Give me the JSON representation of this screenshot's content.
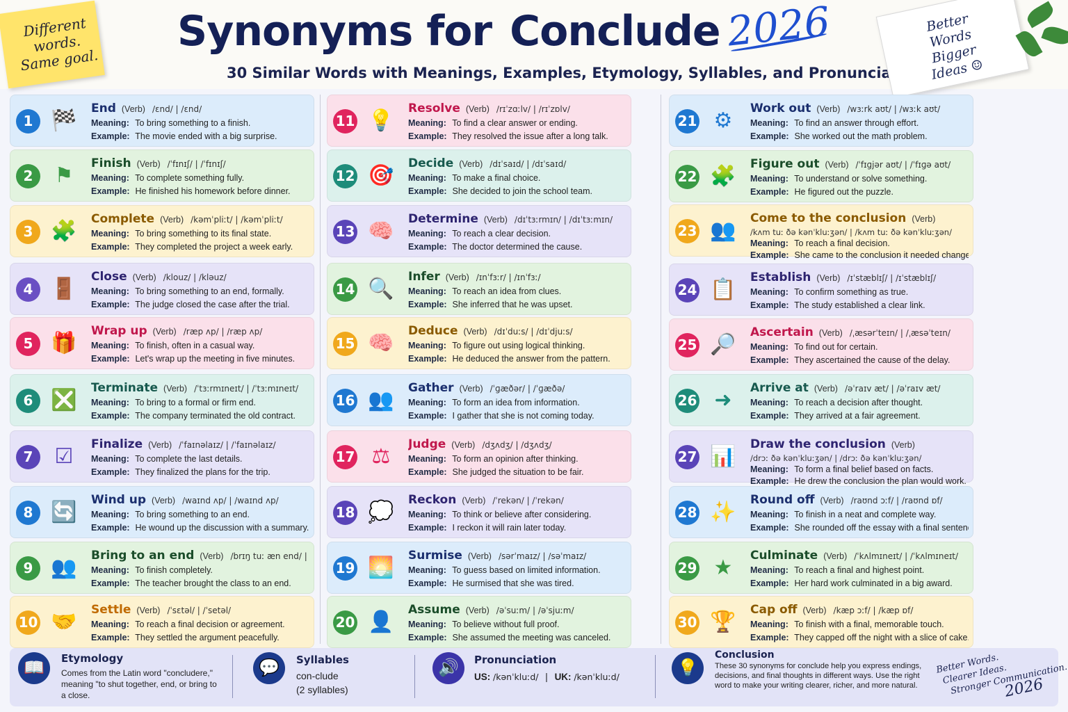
{
  "header": {
    "sticky_lines": [
      "Different",
      "words.",
      "Same goal."
    ],
    "title_prefix": "Synonyms for",
    "title_highlight": "Conclude",
    "year": "2026",
    "subtitle": "30 Similar Words with Meanings, Examples, Etymology, Syllables, and Pronunciation",
    "notebook_lines": [
      "Better",
      "Words",
      "Bigger",
      "Ideas ☺"
    ]
  },
  "labels": {
    "meaning": "Meaning:",
    "example": "Example:"
  },
  "columns": [
    {
      "cards": [
        {
          "num": "1",
          "word": "End",
          "pos": "(Verb)",
          "ipa": "/ɛnd/  |  /ɛnd/",
          "meaning": "To bring something to a finish.",
          "example": "The movie ended with a big surprise.",
          "icon": "checkered-flag-icon",
          "glyph": "🏁",
          "bg": "#dcecfb",
          "accent": "#1f78d1",
          "wordColor": "#1b2f6e"
        },
        {
          "num": "2",
          "word": "Finish",
          "pos": "(Verb)",
          "ipa": "/ˈfɪnɪʃ/  |  /ˈfɪnɪʃ/",
          "meaning": "To complete something fully.",
          "example": "He finished his homework before dinner.",
          "icon": "finish-flag-icon",
          "glyph": "⚑",
          "bg": "#e2f3df",
          "accent": "#3a9a45",
          "wordColor": "#1b4d2a"
        },
        {
          "num": "3",
          "word": "Complete",
          "pos": "(Verb)",
          "ipa": "/kəmˈpliːt/  |  /kəmˈpliːt/",
          "meaning": "To bring something to its final state.",
          "example": "They completed the project a week early.",
          "icon": "puzzle-piece-icon",
          "glyph": "🧩",
          "bg": "#fdf2cf",
          "accent": "#f0a81c",
          "wordColor": "#8a5a00"
        },
        {
          "num": "4",
          "word": "Close",
          "pos": "(Verb)",
          "ipa": "/klouz/  |  /kləuz/",
          "meaning": "To bring something to an end, formally.",
          "example": "The judge closed the case after the trial.",
          "icon": "door-icon",
          "glyph": "🚪",
          "bg": "#e6e3f8",
          "accent": "#6a4fc3",
          "wordColor": "#2e2470"
        },
        {
          "num": "5",
          "word": "Wrap up",
          "pos": "(Verb)",
          "ipa": "/ræp ʌp/  |  /ræp ʌp/",
          "meaning": "To finish, often in a casual way.",
          "example": "Let's wrap up the meeting in five minutes.",
          "icon": "gift-icon",
          "glyph": "🎁",
          "bg": "#fbe0ea",
          "accent": "#e0245e",
          "wordColor": "#c0174c"
        },
        {
          "num": "6",
          "word": "Terminate",
          "pos": "(Verb)",
          "ipa": "/ˈtɜːrmɪneɪt/  |  /ˈtɜːmɪneɪt/",
          "meaning": "To bring to a formal or firm end.",
          "example": "The company terminated the old contract.",
          "icon": "document-x-icon",
          "glyph": "❎",
          "bg": "#dcf1ec",
          "accent": "#1e8c7a",
          "wordColor": "#17594e"
        },
        {
          "num": "7",
          "word": "Finalize",
          "pos": "(Verb)",
          "ipa": "/ˈfaɪnəlaɪz/  |  /ˈfaɪnəlaɪz/",
          "meaning": "To complete the last details.",
          "example": "They finalized the plans for the trip.",
          "icon": "checklist-icon",
          "glyph": "☑",
          "bg": "#e6e3f8",
          "accent": "#5a44b8",
          "wordColor": "#2e2470"
        },
        {
          "num": "8",
          "word": "Wind up",
          "pos": "(Verb)",
          "ipa": "/waɪnd ʌp/  |  /waɪnd ʌp/",
          "meaning": "To bring something to an end.",
          "example": "He wound up the discussion with a summary.",
          "icon": "refresh-arrows-icon",
          "glyph": "🔄",
          "bg": "#dcecfb",
          "accent": "#1f78d1",
          "wordColor": "#1b2f6e"
        },
        {
          "num": "9",
          "word": "Bring to an end",
          "pos": "(Verb)",
          "ipa": "/brɪŋ tuː æn end/  |  /brɪŋ tuː æn end/",
          "meaning": "To finish completely.",
          "example": "The teacher brought the class to an end.",
          "icon": "group-icon",
          "glyph": "👥",
          "bg": "#e2f3df",
          "accent": "#3a9a45",
          "wordColor": "#1b4d2a"
        },
        {
          "num": "10",
          "word": "Settle",
          "pos": "(Verb)",
          "ipa": "/ˈsɛtəl/  |  /ˈsetəl/",
          "meaning": "To reach a final decision or agreement.",
          "example": "They settled the argument peacefully.",
          "icon": "handshake-icon",
          "glyph": "🤝",
          "bg": "#fdf2cf",
          "accent": "#f0a81c",
          "wordColor": "#c06a00"
        }
      ]
    },
    {
      "cards": [
        {
          "num": "11",
          "word": "Resolve",
          "pos": "(Verb)",
          "ipa": "/rɪˈzɑːlv/  |  /rɪˈzɒlv/",
          "meaning": "To find a clear answer or ending.",
          "example": "They resolved the issue after a long talk.",
          "icon": "lightbulb-icon",
          "glyph": "💡",
          "bg": "#fbe0ea",
          "accent": "#e0245e",
          "wordColor": "#c0174c"
        },
        {
          "num": "12",
          "word": "Decide",
          "pos": "(Verb)",
          "ipa": "/dɪˈsaɪd/  |  /dɪˈsaɪd/",
          "meaning": "To make a final choice.",
          "example": "She decided to join the school team.",
          "icon": "target-icon",
          "glyph": "🎯",
          "bg": "#dcf1ec",
          "accent": "#1e8c7a",
          "wordColor": "#17594e"
        },
        {
          "num": "13",
          "word": "Determine",
          "pos": "(Verb)",
          "ipa": "/dɪˈtɜːrmɪn/  |  /dɪˈtɜːmɪn/",
          "meaning": "To reach a clear decision.",
          "example": "The doctor determined the cause.",
          "icon": "brain-icon",
          "glyph": "🧠",
          "bg": "#e6e3f8",
          "accent": "#5a44b8",
          "wordColor": "#2e2470"
        },
        {
          "num": "14",
          "word": "Infer",
          "pos": "(Verb)",
          "ipa": "/ɪnˈfɜːr/  |  /ɪnˈfɜː/",
          "meaning": "To reach an idea from clues.",
          "example": "She inferred that he was upset.",
          "icon": "magnifier-icon",
          "glyph": "🔍",
          "bg": "#e2f3df",
          "accent": "#3a9a45",
          "wordColor": "#1b4d2a"
        },
        {
          "num": "15",
          "word": "Deduce",
          "pos": "(Verb)",
          "ipa": "/dɪˈduːs/  |  /dɪˈdjuːs/",
          "meaning": "To figure out using logical thinking.",
          "example": "He deduced the answer from the pattern.",
          "icon": "brain-icon",
          "glyph": "🧠",
          "bg": "#fdf2cf",
          "accent": "#f0a81c",
          "wordColor": "#8a5a00"
        },
        {
          "num": "16",
          "word": "Gather",
          "pos": "(Verb)",
          "ipa": "/ˈɡæðər/  |  /ˈɡæðə/",
          "meaning": "To form an idea from information.",
          "example": "I gather that she is not coming today.",
          "icon": "people-icon",
          "glyph": "👥",
          "bg": "#dcecfb",
          "accent": "#1f78d1",
          "wordColor": "#1b2f6e"
        },
        {
          "num": "17",
          "word": "Judge",
          "pos": "(Verb)",
          "ipa": "/dʒʌdʒ/  |  /dʒʌdʒ/",
          "meaning": "To form an opinion after thinking.",
          "example": "She judged the situation to be fair.",
          "icon": "scales-icon",
          "glyph": "⚖",
          "bg": "#fbe0ea",
          "accent": "#e0245e",
          "wordColor": "#c0174c"
        },
        {
          "num": "18",
          "word": "Reckon",
          "pos": "(Verb)",
          "ipa": "/ˈrekən/  |  /ˈrekən/",
          "meaning": "To think or believe after considering.",
          "example": "I reckon it will rain later today.",
          "icon": "thought-bubble-icon",
          "glyph": "💭",
          "bg": "#e6e3f8",
          "accent": "#5a44b8",
          "wordColor": "#2e2470"
        },
        {
          "num": "19",
          "word": "Surmise",
          "pos": "(Verb)",
          "ipa": "/sərˈmaɪz/  |  /səˈmaɪz/",
          "meaning": "To guess based on limited information.",
          "example": "He surmised that she was tired.",
          "icon": "sunrise-icon",
          "glyph": "🌅",
          "bg": "#dcecfb",
          "accent": "#1f78d1",
          "wordColor": "#1b2f6e"
        },
        {
          "num": "20",
          "word": "Assume",
          "pos": "(Verb)",
          "ipa": "/əˈsuːm/  |  /əˈsjuːm/",
          "meaning": "To believe without full proof.",
          "example": "She assumed the meeting was canceled.",
          "icon": "person-icon",
          "glyph": "👤",
          "bg": "#e2f3df",
          "accent": "#3a9a45",
          "wordColor": "#1b4d2a"
        }
      ]
    },
    {
      "cards": [
        {
          "num": "21",
          "word": "Work out",
          "pos": "(Verb)",
          "ipa": "/wɜːrk aʊt/  |  /wɜːk aʊt/",
          "meaning": "To find an answer through effort.",
          "example": "She worked out the math problem.",
          "icon": "gear-icon",
          "glyph": "⚙",
          "bg": "#dcecfb",
          "accent": "#1f78d1",
          "wordColor": "#1b2f6e"
        },
        {
          "num": "22",
          "word": "Figure out",
          "pos": "(Verb)",
          "ipa": "/ˈfɪɡjər aʊt/  |  /ˈfɪɡə aʊt/",
          "meaning": "To understand or solve something.",
          "example": "He figured out the puzzle.",
          "icon": "puzzle-piece-icon",
          "glyph": "🧩",
          "bg": "#e2f3df",
          "accent": "#3a9a45",
          "wordColor": "#1b4d2a"
        },
        {
          "num": "23",
          "word": "Come to the conclusion",
          "pos": "(Verb)",
          "ipa": "/kʌm tuː ðə kənˈkluːʒən/  |  /kʌm tuː ðə kənˈkluːʒən/",
          "meaning": "To reach a final decision.",
          "example": "She came to the conclusion it needed changes.",
          "icon": "group-icon",
          "glyph": "👥",
          "bg": "#fdf2cf",
          "accent": "#f0a81c",
          "wordColor": "#8a5a00",
          "ipaBelow": true
        },
        {
          "num": "24",
          "word": "Establish",
          "pos": "(Verb)",
          "ipa": "/ɪˈstæblɪʃ/  |  /ɪˈstæblɪʃ/",
          "meaning": "To confirm something as true.",
          "example": "The study established a clear link.",
          "icon": "document-check-icon",
          "glyph": "📋",
          "bg": "#e6e3f8",
          "accent": "#5a44b8",
          "wordColor": "#2e2470"
        },
        {
          "num": "25",
          "word": "Ascertain",
          "pos": "(Verb)",
          "ipa": "/ˌæsərˈteɪn/  |  /ˌæsəˈteɪn/",
          "meaning": "To find out for certain.",
          "example": "They ascertained the cause of the delay.",
          "icon": "search-icon",
          "glyph": "🔎",
          "bg": "#fbe0ea",
          "accent": "#e0245e",
          "wordColor": "#c0174c"
        },
        {
          "num": "26",
          "word": "Arrive at",
          "pos": "(Verb)",
          "ipa": "/əˈraɪv æt/  |  /əˈraɪv æt/",
          "meaning": "To reach a decision after thought.",
          "example": "They arrived at a fair agreement.",
          "icon": "arrow-right-icon",
          "glyph": "➜",
          "bg": "#dcf1ec",
          "accent": "#1e8c7a",
          "wordColor": "#17594e"
        },
        {
          "num": "27",
          "word": "Draw the conclusion",
          "pos": "(Verb)",
          "ipa": "/drɔː ðə kənˈkluːʒən/  |  /drɔː ðə kənˈkluːʒən/",
          "meaning": "To form a final belief based on facts.",
          "example": "He drew the conclusion the plan would work.",
          "icon": "bar-chart-icon",
          "glyph": "📊",
          "bg": "#e6e3f8",
          "accent": "#5a44b8",
          "wordColor": "#2e2470",
          "ipaBelow": true
        },
        {
          "num": "28",
          "word": "Round off",
          "pos": "(Verb)",
          "ipa": "/raʊnd ɔːf/  |  /raʊnd ɒf/",
          "meaning": "To finish in a neat and complete way.",
          "example": "She rounded off the essay with a final sentence.",
          "icon": "stars-icon",
          "glyph": "✨",
          "bg": "#dcecfb",
          "accent": "#1f78d1",
          "wordColor": "#1b2f6e"
        },
        {
          "num": "29",
          "word": "Culminate",
          "pos": "(Verb)",
          "ipa": "/ˈkʌlmɪneɪt/  |  /ˈkʌlmɪneɪt/",
          "meaning": "To reach a final and highest point.",
          "example": "Her hard work culminated in a big award.",
          "icon": "star-icon",
          "glyph": "★",
          "bg": "#e2f3df",
          "accent": "#3a9a45",
          "wordColor": "#1b4d2a"
        },
        {
          "num": "30",
          "word": "Cap off",
          "pos": "(Verb)",
          "ipa": "/kæp ɔːf/  |  /kæp ɒf/",
          "meaning": "To finish with a final, memorable touch.",
          "example": "They capped off the night with a slice of cake.",
          "icon": "trophy-icon",
          "glyph": "🏆",
          "bg": "#fdf2cf",
          "accent": "#f0a81c",
          "wordColor": "#8a5a00"
        }
      ]
    }
  ],
  "footer": {
    "etymology": {
      "title": "Etymology",
      "text": "Comes from the Latin word \"concludere,\" meaning \"to shut together, end, or bring to a close."
    },
    "syllables": {
      "title": "Syllables",
      "word": "con-clude",
      "count": "(2 syllables)"
    },
    "pronunciation": {
      "title": "Pronunciation",
      "us_label": "US:",
      "us": "/kənˈkluːd/",
      "uk_label": "UK:",
      "uk": "/kənˈkluːd/"
    },
    "conclusion": {
      "title": "Conclusion",
      "text": "These 30 synonyms for conclude help you express endings, decisions, and final thoughts in different ways. Use the right word to make your writing clearer, richer, and more natural."
    },
    "signature_lines": [
      "Better Words.",
      "Clearer Ideas.",
      "Stronger Communication."
    ],
    "signature_year": "2026"
  },
  "colors": {
    "title": "#142056",
    "highlight": "#ffd94a",
    "year": "#1f4fcf"
  }
}
